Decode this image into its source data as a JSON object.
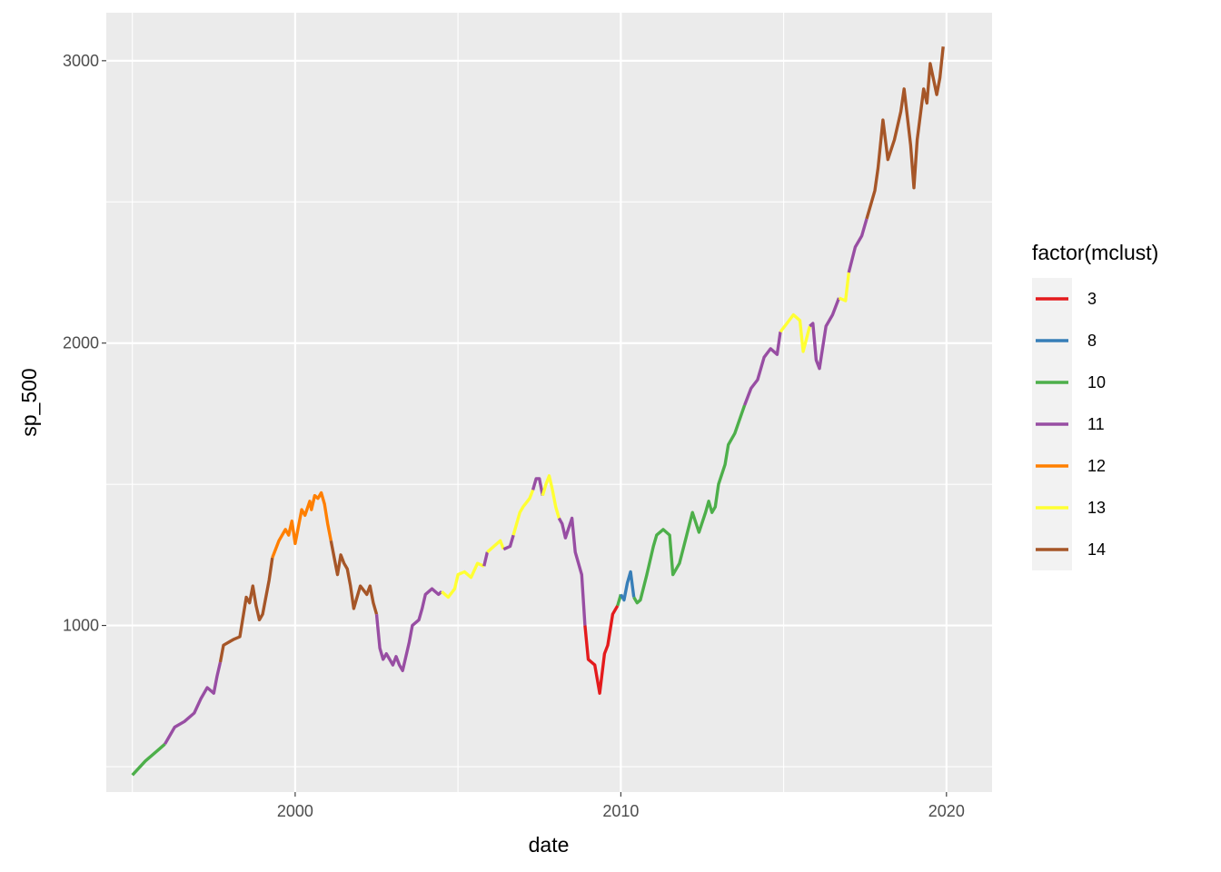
{
  "chart_data": {
    "type": "line",
    "xlabel": "date",
    "ylabel": "sp_500",
    "xlim": [
      1994.2,
      2021.4
    ],
    "ylim": [
      410,
      3170
    ],
    "x_ticks": [
      2000,
      2010,
      2020
    ],
    "x_tick_labels": [
      "2000",
      "2010",
      "2020"
    ],
    "x_minor_ticks": [
      1995,
      2005,
      2015
    ],
    "y_ticks": [
      1000,
      2000,
      3000
    ],
    "y_tick_labels": [
      "1000",
      "2000",
      "3000"
    ],
    "y_minor_ticks": [
      500,
      1500,
      2500
    ],
    "grid": true,
    "legend": {
      "title": "factor(mclust)",
      "placement": "right",
      "entries": [
        {
          "label": "3",
          "color": "#E41A1C"
        },
        {
          "label": "8",
          "color": "#377EB8"
        },
        {
          "label": "10",
          "color": "#4DAF4A"
        },
        {
          "label": "11",
          "color": "#984EA3"
        },
        {
          "label": "12",
          "color": "#FF7F00"
        },
        {
          "label": "13",
          "color": "#FFFF33"
        },
        {
          "label": "14",
          "color": "#A65628"
        }
      ]
    },
    "series": [
      {
        "cluster": "10",
        "points": [
          [
            1995.0,
            470
          ],
          [
            1995.4,
            520
          ],
          [
            1995.8,
            560
          ],
          [
            1996.0,
            580
          ]
        ]
      },
      {
        "cluster": "11",
        "points": [
          [
            1996.0,
            580
          ],
          [
            1996.3,
            640
          ],
          [
            1996.6,
            660
          ],
          [
            1996.9,
            690
          ],
          [
            1997.1,
            740
          ],
          [
            1997.3,
            780
          ],
          [
            1997.5,
            760
          ],
          [
            1997.6,
            820
          ],
          [
            1997.7,
            870
          ]
        ]
      },
      {
        "cluster": "14",
        "points": [
          [
            1997.7,
            870
          ],
          [
            1997.8,
            930
          ],
          [
            1998.1,
            950
          ],
          [
            1998.3,
            960
          ],
          [
            1998.5,
            1100
          ],
          [
            1998.6,
            1080
          ],
          [
            1998.7,
            1140
          ],
          [
            1998.8,
            1070
          ],
          [
            1998.9,
            1020
          ],
          [
            1999.0,
            1040
          ],
          [
            1999.2,
            1160
          ],
          [
            1999.3,
            1240
          ]
        ]
      },
      {
        "cluster": "12",
        "points": [
          [
            1999.3,
            1240
          ],
          [
            1999.5,
            1300
          ],
          [
            1999.7,
            1340
          ],
          [
            1999.8,
            1320
          ],
          [
            1999.9,
            1370
          ],
          [
            2000.0,
            1290
          ],
          [
            2000.2,
            1410
          ],
          [
            2000.3,
            1390
          ],
          [
            2000.45,
            1440
          ],
          [
            2000.5,
            1410
          ],
          [
            2000.6,
            1460
          ],
          [
            2000.7,
            1450
          ],
          [
            2000.8,
            1470
          ],
          [
            2000.9,
            1430
          ],
          [
            2001.0,
            1360
          ],
          [
            2001.1,
            1300
          ]
        ]
      },
      {
        "cluster": "14",
        "points": [
          [
            2001.1,
            1300
          ],
          [
            2001.2,
            1240
          ],
          [
            2001.3,
            1180
          ],
          [
            2001.4,
            1250
          ],
          [
            2001.5,
            1220
          ],
          [
            2001.6,
            1200
          ],
          [
            2001.7,
            1140
          ],
          [
            2001.8,
            1060
          ],
          [
            2001.9,
            1100
          ],
          [
            2002.0,
            1140
          ],
          [
            2002.2,
            1110
          ],
          [
            2002.3,
            1140
          ],
          [
            2002.4,
            1080
          ],
          [
            2002.5,
            1040
          ]
        ]
      },
      {
        "cluster": "11",
        "points": [
          [
            2002.5,
            1040
          ],
          [
            2002.6,
            920
          ],
          [
            2002.7,
            880
          ],
          [
            2002.8,
            900
          ],
          [
            2002.9,
            880
          ],
          [
            2003.0,
            860
          ],
          [
            2003.1,
            890
          ],
          [
            2003.2,
            860
          ],
          [
            2003.3,
            840
          ],
          [
            2003.5,
            940
          ],
          [
            2003.6,
            1000
          ],
          [
            2003.8,
            1020
          ],
          [
            2003.9,
            1060
          ],
          [
            2004.0,
            1110
          ],
          [
            2004.2,
            1130
          ],
          [
            2004.4,
            1110
          ],
          [
            2004.5,
            1120
          ]
        ]
      },
      {
        "cluster": "13",
        "points": [
          [
            2004.5,
            1120
          ],
          [
            2004.7,
            1100
          ],
          [
            2004.9,
            1130
          ],
          [
            2005.0,
            1180
          ],
          [
            2005.2,
            1190
          ],
          [
            2005.4,
            1170
          ],
          [
            2005.6,
            1220
          ],
          [
            2005.8,
            1210
          ]
        ]
      },
      {
        "cluster": "11",
        "points": [
          [
            2005.8,
            1210
          ],
          [
            2005.9,
            1260
          ]
        ]
      },
      {
        "cluster": "13",
        "points": [
          [
            2005.9,
            1260
          ],
          [
            2006.1,
            1280
          ],
          [
            2006.3,
            1300
          ],
          [
            2006.4,
            1270
          ]
        ]
      },
      {
        "cluster": "11",
        "points": [
          [
            2006.4,
            1270
          ],
          [
            2006.6,
            1280
          ],
          [
            2006.7,
            1320
          ]
        ]
      },
      {
        "cluster": "13",
        "points": [
          [
            2006.7,
            1320
          ],
          [
            2006.9,
            1400
          ],
          [
            2007.0,
            1420
          ],
          [
            2007.2,
            1450
          ],
          [
            2007.3,
            1480
          ]
        ]
      },
      {
        "cluster": "11",
        "points": [
          [
            2007.3,
            1480
          ],
          [
            2007.4,
            1520
          ],
          [
            2007.5,
            1520
          ],
          [
            2007.6,
            1460
          ]
        ]
      },
      {
        "cluster": "13",
        "points": [
          [
            2007.6,
            1460
          ],
          [
            2007.7,
            1500
          ],
          [
            2007.8,
            1530
          ],
          [
            2007.9,
            1480
          ],
          [
            2008.0,
            1420
          ],
          [
            2008.1,
            1380
          ]
        ]
      },
      {
        "cluster": "11",
        "points": [
          [
            2008.1,
            1380
          ],
          [
            2008.2,
            1360
          ],
          [
            2008.3,
            1310
          ],
          [
            2008.5,
            1380
          ],
          [
            2008.6,
            1260
          ],
          [
            2008.8,
            1180
          ],
          [
            2008.9,
            1000
          ]
        ]
      },
      {
        "cluster": "3",
        "points": [
          [
            2008.9,
            1000
          ],
          [
            2009.0,
            880
          ],
          [
            2009.1,
            870
          ],
          [
            2009.2,
            860
          ],
          [
            2009.35,
            760
          ],
          [
            2009.5,
            900
          ],
          [
            2009.6,
            930
          ],
          [
            2009.75,
            1040
          ],
          [
            2009.9,
            1070
          ]
        ]
      },
      {
        "cluster": "10",
        "points": [
          [
            2009.9,
            1070
          ],
          [
            2010.0,
            1110
          ]
        ]
      },
      {
        "cluster": "8",
        "points": [
          [
            2010.0,
            1110
          ],
          [
            2010.1,
            1090
          ],
          [
            2010.2,
            1150
          ],
          [
            2010.3,
            1190
          ],
          [
            2010.4,
            1100
          ]
        ]
      },
      {
        "cluster": "10",
        "points": [
          [
            2010.4,
            1100
          ],
          [
            2010.5,
            1080
          ],
          [
            2010.6,
            1090
          ],
          [
            2010.8,
            1180
          ],
          [
            2011.0,
            1280
          ],
          [
            2011.1,
            1320
          ],
          [
            2011.3,
            1340
          ],
          [
            2011.5,
            1320
          ],
          [
            2011.6,
            1180
          ],
          [
            2011.8,
            1220
          ],
          [
            2012.0,
            1310
          ],
          [
            2012.2,
            1400
          ],
          [
            2012.4,
            1330
          ],
          [
            2012.6,
            1400
          ],
          [
            2012.7,
            1440
          ],
          [
            2012.8,
            1400
          ],
          [
            2012.9,
            1420
          ],
          [
            2013.0,
            1500
          ],
          [
            2013.2,
            1570
          ],
          [
            2013.3,
            1640
          ],
          [
            2013.5,
            1680
          ],
          [
            2013.8,
            1780
          ]
        ]
      },
      {
        "cluster": "11",
        "points": [
          [
            2013.8,
            1780
          ],
          [
            2014.0,
            1840
          ],
          [
            2014.2,
            1870
          ],
          [
            2014.4,
            1950
          ],
          [
            2014.6,
            1980
          ],
          [
            2014.8,
            1960
          ],
          [
            2014.9,
            2040
          ]
        ]
      },
      {
        "cluster": "13",
        "points": [
          [
            2014.9,
            2040
          ],
          [
            2015.1,
            2070
          ],
          [
            2015.3,
            2100
          ],
          [
            2015.5,
            2080
          ],
          [
            2015.6,
            1970
          ],
          [
            2015.8,
            2060
          ]
        ]
      },
      {
        "cluster": "11",
        "points": [
          [
            2015.8,
            2060
          ],
          [
            2015.9,
            2070
          ],
          [
            2016.0,
            1940
          ],
          [
            2016.1,
            1910
          ],
          [
            2016.3,
            2060
          ],
          [
            2016.5,
            2100
          ],
          [
            2016.7,
            2160
          ]
        ]
      },
      {
        "cluster": "13",
        "points": [
          [
            2016.7,
            2160
          ],
          [
            2016.9,
            2150
          ],
          [
            2017.0,
            2250
          ]
        ]
      },
      {
        "cluster": "11",
        "points": [
          [
            2017.0,
            2250
          ],
          [
            2017.2,
            2340
          ],
          [
            2017.4,
            2380
          ],
          [
            2017.55,
            2440
          ]
        ]
      },
      {
        "cluster": "14",
        "points": [
          [
            2017.55,
            2440
          ],
          [
            2017.8,
            2540
          ],
          [
            2017.9,
            2620
          ],
          [
            2018.05,
            2790
          ],
          [
            2018.2,
            2650
          ],
          [
            2018.4,
            2720
          ],
          [
            2018.6,
            2820
          ],
          [
            2018.7,
            2900
          ],
          [
            2018.9,
            2700
          ],
          [
            2019.0,
            2550
          ],
          [
            2019.1,
            2720
          ],
          [
            2019.3,
            2900
          ],
          [
            2019.4,
            2850
          ],
          [
            2019.5,
            2990
          ],
          [
            2019.7,
            2880
          ],
          [
            2019.8,
            2940
          ],
          [
            2019.9,
            3050
          ]
        ]
      }
    ]
  }
}
